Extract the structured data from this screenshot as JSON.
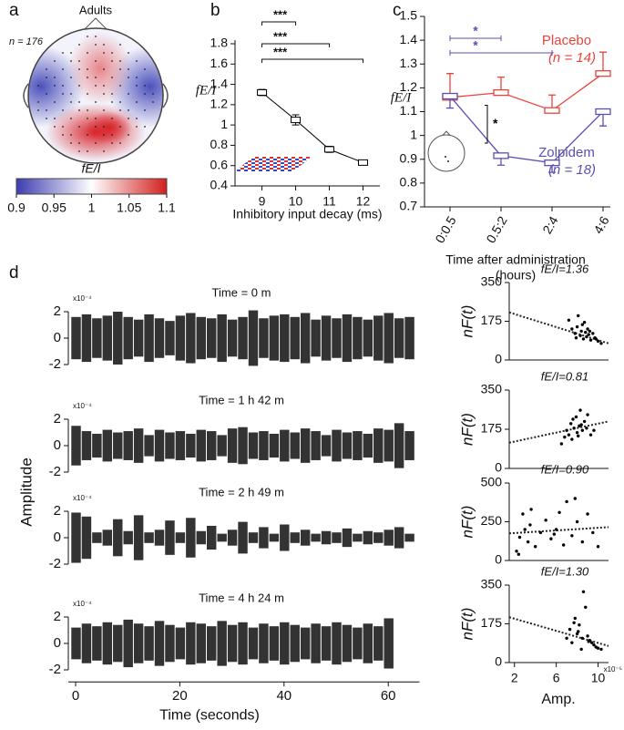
{
  "panel_labels": [
    "a",
    "b",
    "c",
    "d"
  ],
  "shared_ylabel": "Amplitude",
  "chart_data": [
    {
      "type": "topomap",
      "title": "Adults",
      "annotation": "n = 176",
      "colorbar_label": "fE/I",
      "clim": [
        0.9,
        1.1
      ],
      "cticks": [
        0.9,
        0.95,
        1,
        1.05,
        1.1
      ]
    },
    {
      "type": "errorline",
      "xlabel": "Inhibitory input decay (ms)",
      "ylabel": "fE/I",
      "color": "#000000",
      "x": [
        9,
        10,
        11,
        12
      ],
      "values": [
        1.32,
        1.05,
        0.76,
        0.63
      ],
      "errors": [
        0.03,
        0.05,
        0.03,
        0.02
      ],
      "xlim": [
        8.2,
        12.5
      ],
      "xticks": [
        9,
        10,
        11,
        12
      ],
      "ylim": [
        0.4,
        1.8
      ],
      "yticks": [
        0.4,
        0.6,
        0.8,
        1,
        1.2,
        1.4,
        1.6,
        1.8
      ],
      "comparisons": [
        {
          "from": 9,
          "to": 10,
          "label": "***"
        },
        {
          "from": 9,
          "to": 11,
          "label": "***"
        },
        {
          "from": 9,
          "to": 12,
          "label": "***"
        }
      ]
    },
    {
      "type": "catline",
      "xlabel": [
        "Time after administration",
        "(hours)"
      ],
      "ylabel": "fE/I",
      "categories": [
        "0:0.5",
        "0.5:2",
        "2:4",
        "4:6"
      ],
      "series": [
        {
          "name": "Placebo",
          "n_label": "(n = 14)",
          "color": "#e8443a",
          "values": [
            1.16,
            1.18,
            1.105,
            1.26
          ],
          "errors": [
            0.1,
            0.065,
            0.065,
            0.09
          ],
          "error_direction": "up"
        },
        {
          "name": "Zolpidem",
          "n_label": "(n = 18)",
          "color": "#5a50b4",
          "values": [
            1.165,
            0.915,
            0.885,
            1.1
          ],
          "errors": [
            0.05,
            0.04,
            0.04,
            0.06
          ],
          "error_direction": "down"
        }
      ],
      "ylim": [
        0.7,
        1.5
      ],
      "yticks": [
        0.7,
        0.8,
        0.9,
        1,
        1.1,
        1.2,
        1.3,
        1.4,
        1.5
      ],
      "comparisons": [
        {
          "from": 0,
          "to": 1,
          "label": "*",
          "color": "#5a50b4"
        },
        {
          "from": 0,
          "to": 2,
          "label": "*",
          "color": "#5a50b4"
        }
      ],
      "between": [
        {
          "category": 1,
          "label": "*",
          "color": "#000000"
        }
      ]
    },
    {
      "type": "trace",
      "title": "Time = 0 m",
      "exponent": "x10⁻⁴",
      "color": "#333333",
      "x": [
        0,
        2,
        4,
        6,
        8,
        10,
        12,
        14,
        16,
        18,
        20,
        22,
        24,
        26,
        28,
        30,
        32,
        34,
        36,
        38,
        40,
        42,
        44,
        46,
        48,
        50,
        52,
        54,
        56,
        58,
        60,
        62,
        64
      ],
      "values": [
        1.6,
        1.8,
        1.5,
        1.7,
        2.0,
        1.6,
        1.4,
        1.8,
        1.5,
        1.3,
        1.7,
        1.9,
        1.6,
        1.5,
        1.8,
        1.4,
        1.6,
        2.1,
        1.5,
        1.7,
        1.8,
        1.6,
        1.9,
        1.4,
        1.7,
        1.5,
        1.8,
        1.6,
        1.4,
        1.7,
        1.9,
        1.5,
        1.6
      ],
      "xlim": [
        0,
        66
      ],
      "ylim": [
        -2.5,
        2.5
      ],
      "yticks": [
        -2,
        0,
        2
      ]
    },
    {
      "type": "trace",
      "title": "Time = 1 h 42 m",
      "exponent": "x10⁻⁴",
      "color": "#333333",
      "x": [
        0,
        2,
        4,
        6,
        8,
        10,
        12,
        14,
        16,
        18,
        20,
        22,
        24,
        26,
        28,
        30,
        32,
        34,
        36,
        38,
        40,
        42,
        44,
        46,
        48,
        50,
        52,
        54,
        56,
        58,
        60,
        62,
        64
      ],
      "values": [
        1.5,
        1.1,
        0.9,
        1.2,
        1.0,
        1.1,
        1.3,
        0.8,
        1.2,
        1.0,
        1.1,
        0.9,
        1.2,
        1.1,
        0.8,
        1.3,
        1.4,
        1.0,
        1.1,
        0.9,
        1.2,
        1.0,
        1.3,
        1.1,
        0.8,
        1.2,
        1.0,
        1.1,
        0.9,
        1.3,
        1.2,
        1.7,
        1.1
      ],
      "xlim": [
        0,
        66
      ],
      "ylim": [
        -2.5,
        2.5
      ],
      "yticks": [
        -2,
        0,
        2
      ]
    },
    {
      "type": "trace",
      "title": "Time = 2 h 49 m",
      "exponent": "x10⁻⁴",
      "color": "#333333",
      "x": [
        0,
        2,
        4,
        6,
        8,
        10,
        12,
        14,
        16,
        18,
        20,
        22,
        24,
        26,
        28,
        30,
        32,
        34,
        36,
        38,
        40,
        42,
        44,
        46,
        48,
        50,
        52,
        54,
        56,
        58,
        60,
        62,
        64
      ],
      "values": [
        1.9,
        1.6,
        0.4,
        0.6,
        1.4,
        0.5,
        1.7,
        0.4,
        0.6,
        1.3,
        0.4,
        1.5,
        0.5,
        0.9,
        0.3,
        0.6,
        1.2,
        0.4,
        0.8,
        0.3,
        1.0,
        0.4,
        0.6,
        0.3,
        0.5,
        0.4,
        0.7,
        0.3,
        0.5,
        0.4,
        0.6,
        0.8,
        0.3
      ],
      "xlim": [
        0,
        66
      ],
      "ylim": [
        -2.5,
        2.5
      ],
      "yticks": [
        -2,
        0,
        2
      ]
    },
    {
      "type": "trace",
      "title": "Time = 4 h 24 m",
      "exponent": "x10⁻⁴",
      "color": "#333333",
      "xlabel": "Time (seconds)",
      "x": [
        0,
        2,
        4,
        6,
        8,
        10,
        12,
        14,
        16,
        18,
        20,
        22,
        24,
        26,
        28,
        30,
        32,
        34,
        36,
        38,
        40,
        42,
        44,
        46,
        48,
        50,
        52,
        54,
        56,
        58,
        60
      ],
      "values": [
        1.2,
        1.5,
        1.3,
        1.6,
        1.4,
        1.8,
        1.5,
        1.3,
        1.7,
        1.4,
        1.2,
        1.6,
        1.5,
        1.3,
        1.7,
        1.4,
        1.6,
        1.2,
        1.5,
        1.3,
        1.6,
        1.4,
        1.2,
        1.5,
        1.3,
        1.6,
        1.4,
        1.2,
        1.5,
        1.3,
        1.9
      ],
      "xlim": [
        0,
        66
      ],
      "xticks": [
        0,
        20,
        40,
        60
      ],
      "ylim": [
        -2.5,
        2.5
      ],
      "yticks": [
        -2,
        0,
        2
      ]
    },
    {
      "type": "scatter",
      "title": "fE/I=1.36",
      "ylabel": "nF(t)",
      "color": "#000000",
      "x": [
        7.2,
        7.5,
        7.8,
        8,
        8.1,
        8.3,
        8.4,
        8.5,
        8.6,
        8.8,
        8.9,
        9,
        9.1,
        9.3,
        9.5,
        9.7,
        10,
        10.3,
        7.9,
        8.7,
        9.2,
        9.8
      ],
      "values": [
        180,
        140,
        120,
        150,
        200,
        110,
        130,
        160,
        95,
        125,
        105,
        140,
        115,
        90,
        120,
        100,
        85,
        75,
        100,
        170,
        130,
        95
      ],
      "trend": [
        215,
        75
      ],
      "xlim": [
        1.5,
        11
      ],
      "ylim": [
        0,
        350
      ],
      "yticks": [
        0,
        175,
        350
      ]
    },
    {
      "type": "scatter",
      "title": "fE/I=0.81",
      "ylabel": "nF(t)",
      "color": "#000000",
      "x": [
        6.5,
        6.8,
        7,
        7.2,
        7.4,
        7.5,
        7.7,
        7.9,
        8,
        8.2,
        8.3,
        8.5,
        8.7,
        8.9,
        9,
        9.3,
        9.6,
        7.6,
        8.1,
        8.4
      ],
      "values": [
        110,
        140,
        170,
        150,
        200,
        130,
        180,
        230,
        160,
        190,
        260,
        170,
        210,
        180,
        240,
        150,
        170,
        220,
        145,
        195
      ],
      "trend": [
        115,
        210
      ],
      "xlim": [
        1.5,
        11
      ],
      "ylim": [
        0,
        350
      ],
      "yticks": [
        0,
        175,
        350
      ]
    },
    {
      "type": "scatter",
      "title": "fE/I=0.90",
      "ylabel": "nF(t)",
      "color": "#000000",
      "x": [
        2.2,
        2.5,
        2.8,
        3,
        3.3,
        3.6,
        4,
        4.5,
        5,
        5.5,
        6,
        6.3,
        6.7,
        7,
        7.5,
        8,
        8.5,
        9,
        9.5,
        10,
        2.4,
        3.5,
        5.8,
        7.8
      ],
      "values": [
        60,
        150,
        300,
        200,
        120,
        330,
        90,
        180,
        260,
        140,
        200,
        310,
        100,
        380,
        160,
        250,
        120,
        300,
        180,
        90,
        40,
        230,
        170,
        400
      ],
      "trend": [
        175,
        215
      ],
      "xlim": [
        1.5,
        11
      ],
      "ylim": [
        0,
        500
      ],
      "yticks": [
        0,
        250,
        500
      ]
    },
    {
      "type": "scatter",
      "title": "fE/I=1.30",
      "ylabel": "nF(t)",
      "color": "#000000",
      "xlabel": "Amp.",
      "exponent": "x10⁻⁵",
      "x": [
        7,
        7.3,
        7.5,
        7.8,
        8,
        8.2,
        8.4,
        8.6,
        8.8,
        9,
        9.2,
        9.4,
        9.6,
        9.8,
        10,
        10.3,
        8.1,
        8.5,
        7.7,
        9.1
      ],
      "values": [
        110,
        150,
        90,
        200,
        130,
        170,
        60,
        320,
        250,
        120,
        100,
        90,
        80,
        70,
        65,
        60,
        140,
        110,
        180,
        95
      ],
      "trend": [
        205,
        75
      ],
      "xlim": [
        1.5,
        11
      ],
      "xticks": [
        2,
        6,
        10
      ],
      "ylim": [
        0,
        350
      ],
      "yticks": [
        0,
        175,
        350
      ]
    }
  ]
}
